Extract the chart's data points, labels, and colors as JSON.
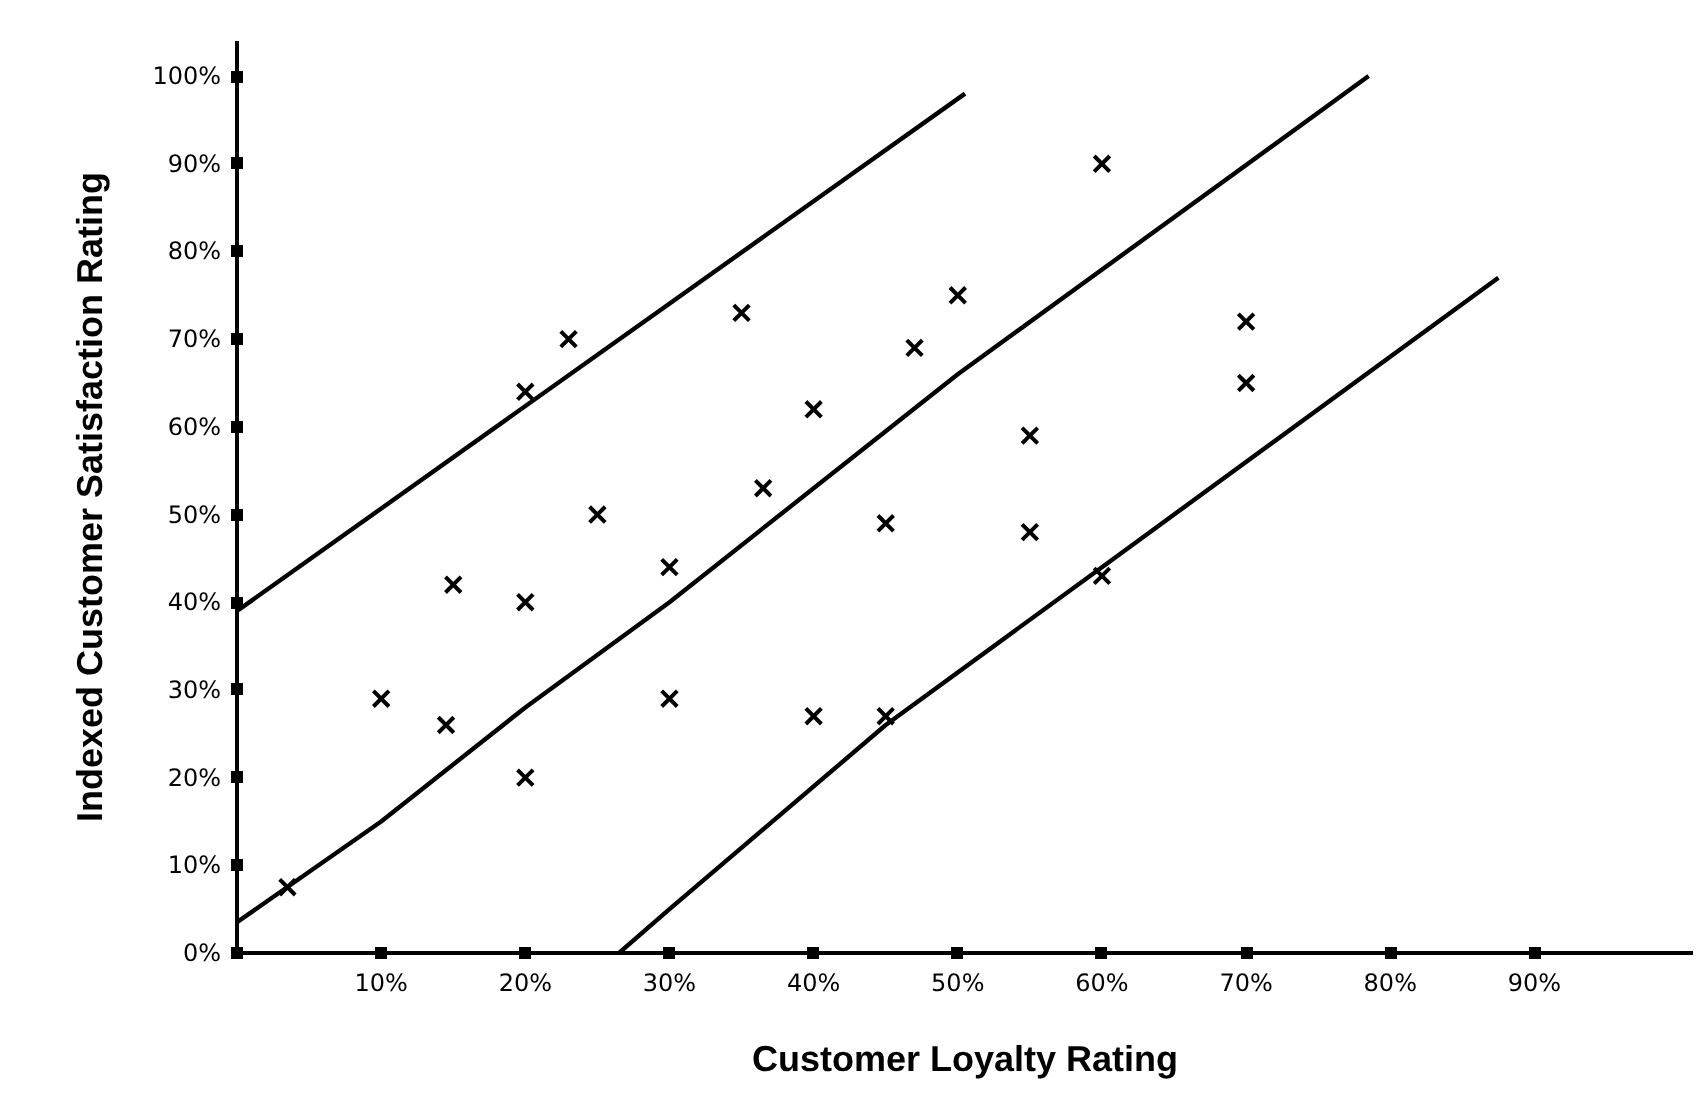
{
  "chart_data": {
    "type": "scatter",
    "xlabel": "Customer Loyalty Rating",
    "ylabel": "Indexed Customer Satisfaction Rating",
    "xlim": [
      0,
      101
    ],
    "ylim": [
      0,
      104
    ],
    "xticks": [
      {
        "value": 10,
        "label": "10%"
      },
      {
        "value": 20,
        "label": "20%"
      },
      {
        "value": 30,
        "label": "30%"
      },
      {
        "value": 40,
        "label": "40%"
      },
      {
        "value": 50,
        "label": "50%"
      },
      {
        "value": 60,
        "label": "60%"
      },
      {
        "value": 70,
        "label": "70%"
      },
      {
        "value": 80,
        "label": "80%"
      },
      {
        "value": 90,
        "label": "90%"
      }
    ],
    "yticks": [
      {
        "value": 0,
        "label": "0%"
      },
      {
        "value": 10,
        "label": "10%"
      },
      {
        "value": 20,
        "label": "20%"
      },
      {
        "value": 30,
        "label": "30%"
      },
      {
        "value": 40,
        "label": "40%"
      },
      {
        "value": 50,
        "label": "50%"
      },
      {
        "value": 60,
        "label": "60%"
      },
      {
        "value": 70,
        "label": "70%"
      },
      {
        "value": 80,
        "label": "80%"
      },
      {
        "value": 90,
        "label": "90%"
      },
      {
        "value": 100,
        "label": "100%"
      }
    ],
    "grid": false,
    "series": [
      {
        "marker": "cross",
        "color": "#000000",
        "x": [
          3.5,
          10,
          14.5,
          15,
          20,
          20,
          20,
          23,
          25,
          30,
          30,
          35,
          36.5,
          40,
          40,
          45,
          45,
          47,
          50,
          55,
          55,
          60,
          60,
          70,
          70
        ],
        "values": [
          7.5,
          29,
          26,
          42,
          20,
          40,
          64,
          70,
          50,
          29,
          44,
          73,
          53,
          27,
          62,
          27,
          49,
          69,
          75,
          48,
          59,
          43,
          90,
          65,
          72
        ]
      },
      {
        "type": "line",
        "color": "#000000",
        "x": [
          0,
          50.5
        ],
        "values": [
          39,
          98
        ]
      },
      {
        "type": "line",
        "color": "#000000",
        "x": [
          0,
          10,
          20,
          30,
          50,
          78.5
        ],
        "values": [
          3.5,
          15,
          28,
          40,
          66,
          100
        ]
      },
      {
        "type": "line",
        "color": "#000000",
        "x": [
          26.5,
          30,
          45,
          60,
          87.5
        ],
        "values": [
          0,
          5,
          26,
          44,
          77
        ]
      }
    ]
  }
}
